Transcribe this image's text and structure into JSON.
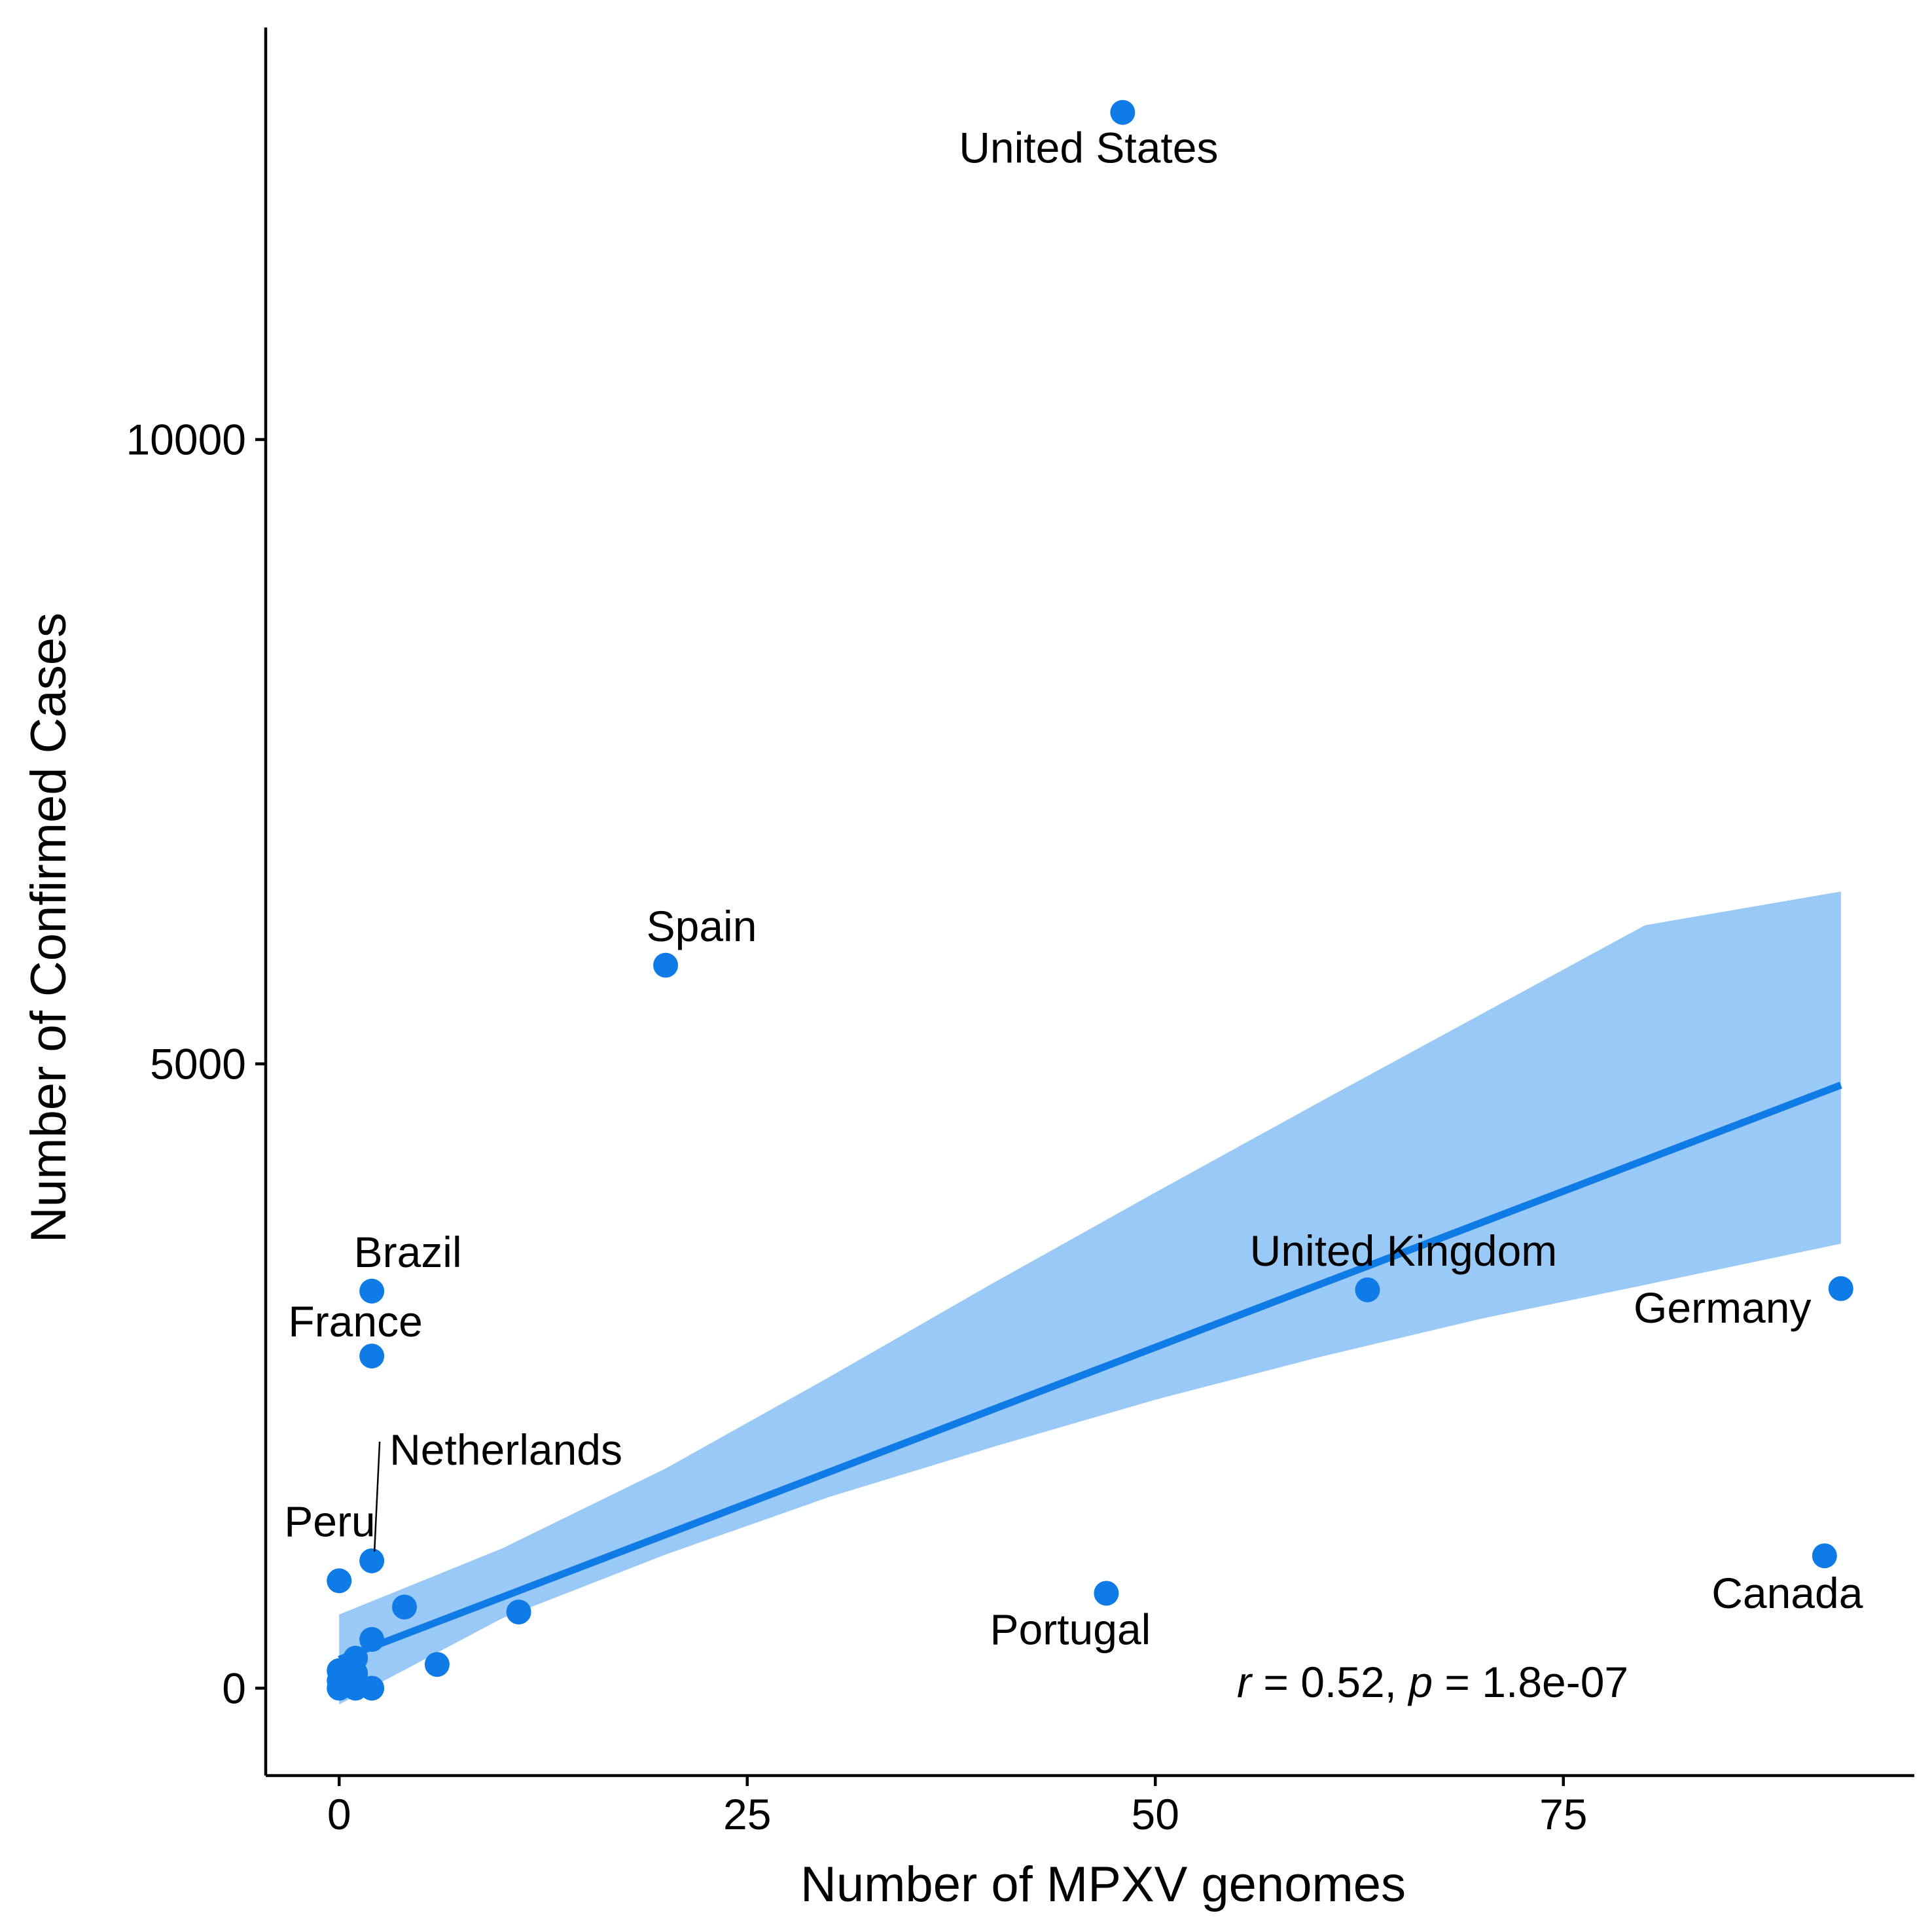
{
  "chart_data": {
    "type": "scatter",
    "xlabel": "Number of MPXV genomes",
    "ylabel": "Number of Confirmed Cases",
    "xlim": [
      -4.5,
      96.5
    ],
    "ylim": [
      -700,
      13300
    ],
    "x_ticks": [
      0,
      25,
      50,
      75
    ],
    "y_ticks": [
      0,
      5000,
      10000
    ],
    "grid": false,
    "point_color": "#0e7be6",
    "band_color": "#99c9f7",
    "line_color": "#0e7be6",
    "points": [
      {
        "x": 48,
        "y": 12620,
        "label": "United States"
      },
      {
        "x": 20,
        "y": 5790,
        "label": "Spain"
      },
      {
        "x": 2,
        "y": 3180,
        "label": "Brazil"
      },
      {
        "x": 2,
        "y": 2660,
        "label": "France"
      },
      {
        "x": 2,
        "y": 1020,
        "label": "Netherlands"
      },
      {
        "x": 0,
        "y": 860,
        "label": "Peru"
      },
      {
        "x": 63,
        "y": 3190,
        "label": "United Kingdom"
      },
      {
        "x": 92,
        "y": 3200,
        "label": "Germany"
      },
      {
        "x": 47,
        "y": 760,
        "label": "Portugal"
      },
      {
        "x": 91,
        "y": 1060,
        "label": "Canada"
      },
      {
        "x": 4,
        "y": 650,
        "label": ""
      },
      {
        "x": 11,
        "y": 610,
        "label": ""
      },
      {
        "x": 6,
        "y": 190,
        "label": ""
      },
      {
        "x": 2,
        "y": 390,
        "label": ""
      },
      {
        "x": 1,
        "y": 240,
        "label": ""
      },
      {
        "x": 1,
        "y": 120,
        "label": ""
      },
      {
        "x": 0,
        "y": 140,
        "label": ""
      },
      {
        "x": 0,
        "y": 60,
        "label": ""
      },
      {
        "x": 0,
        "y": 0,
        "label": ""
      },
      {
        "x": 1,
        "y": 0,
        "label": ""
      },
      {
        "x": 2,
        "y": 0,
        "label": ""
      }
    ],
    "regression": {
      "x": [
        0,
        92
      ],
      "y": [
        230,
        4830
      ],
      "ci_x": [
        0,
        10,
        20,
        30,
        40,
        50,
        60,
        70,
        80,
        92
      ],
      "ci_lower": [
        -130,
        560,
        1070,
        1530,
        1930,
        2310,
        2650,
        2960,
        3230,
        3560
      ],
      "ci_upper": [
        590,
        1120,
        1760,
        2490,
        3240,
        3970,
        4690,
        5400,
        6110,
        6380
      ]
    },
    "annotation": {
      "r_symbol": "r",
      "r_text": " = 0.52, ",
      "p_symbol": "p",
      "p_text": " = 1.8e-07"
    }
  }
}
